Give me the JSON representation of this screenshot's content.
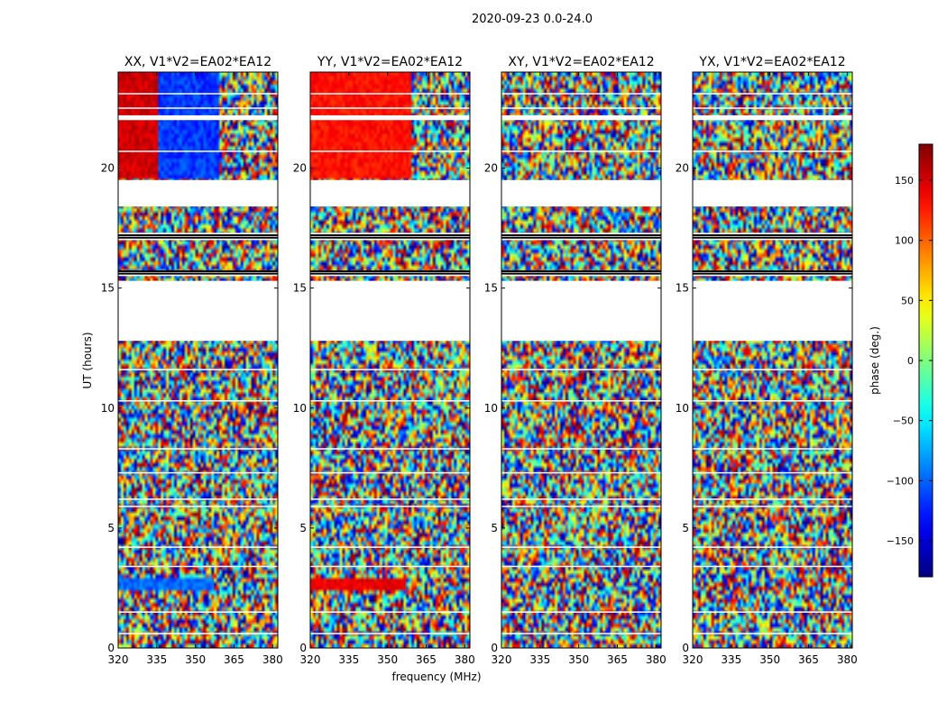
{
  "figure": {
    "suptitle": "2020-09-23 0.0-24.0"
  },
  "chart_data": {
    "type": "heatmap",
    "title": "2020-09-23 0.0-24.0",
    "xlabel": "frequency (MHz)",
    "ylabel": "UT (hours)",
    "xlim": [
      320,
      382
    ],
    "ylim": [
      0,
      24
    ],
    "xticks": [
      "320",
      "335",
      "350",
      "365",
      "380"
    ],
    "yticks": [
      "0",
      "5",
      "10",
      "15",
      "20"
    ],
    "panels": [
      {
        "title": "XX, V1*V2=EA02*EA12",
        "correlation": "XX"
      },
      {
        "title": "YY, V1*V2=EA02*EA12",
        "correlation": "YY"
      },
      {
        "title": "XY, V1*V2=EA02*EA12",
        "correlation": "XY"
      },
      {
        "title": "YX, V1*V2=EA02*EA12",
        "correlation": "YX"
      }
    ],
    "colorbar": {
      "label": "phase (deg.)",
      "min": -180,
      "max": 180,
      "ticks": [
        "150",
        "100",
        "50",
        "0",
        "−50",
        "−100",
        "−150"
      ],
      "cmap": "jet"
    },
    "flagged_bands_hours": [
      [
        12.8,
        15.3
      ],
      [
        15.5,
        15.7
      ],
      [
        17.0,
        17.3
      ],
      [
        18.4,
        19.5
      ],
      [
        22.0,
        22.2
      ]
    ]
  }
}
